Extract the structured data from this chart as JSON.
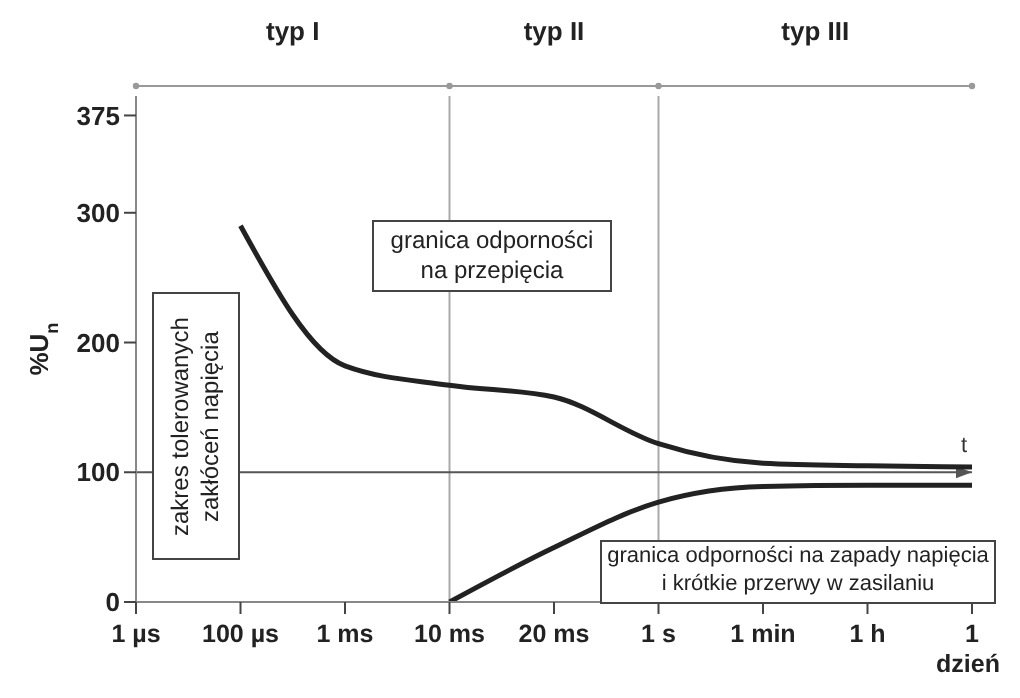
{
  "chart_data": {
    "type": "line",
    "ylabel": "%U$_{n}$",
    "grid": false,
    "legend": false,
    "marker": "none",
    "line_style": "solid",
    "categories": [
      "1 µs",
      "100 µs",
      "1 ms",
      "10 ms",
      "20 ms",
      "1 s",
      "1 min",
      "1 h",
      "1 dzień"
    ],
    "ylim": [
      0,
      390
    ],
    "yticks": [
      0,
      100,
      200,
      300,
      375
    ],
    "series": [
      {
        "color": "#222222",
        "values": [
          null,
          290,
          182,
          167,
          158,
          122,
          107,
          105,
          104
        ]
      },
      {
        "color": "#222222",
        "values": [
          null,
          null,
          null,
          0,
          42,
          77,
          89,
          90,
          90
        ]
      }
    ],
    "ref_lines": [
      {
        "axis": "x",
        "value": "10 ms",
        "color": "#aaaaaa"
      },
      {
        "axis": "x",
        "value": "1 s",
        "color": "#aaaaaa"
      },
      {
        "axis": "y",
        "value": 100,
        "label": "t",
        "color": "#555555"
      }
    ],
    "annotations": [
      "typ I",
      "typ II",
      "typ III",
      "zakres tolerowanych zakłóceń napięcia",
      "granica odporności na przepięcia",
      "granica odporności na zapady napięcia i krótkie przerwy w zasilaniu"
    ]
  }
}
